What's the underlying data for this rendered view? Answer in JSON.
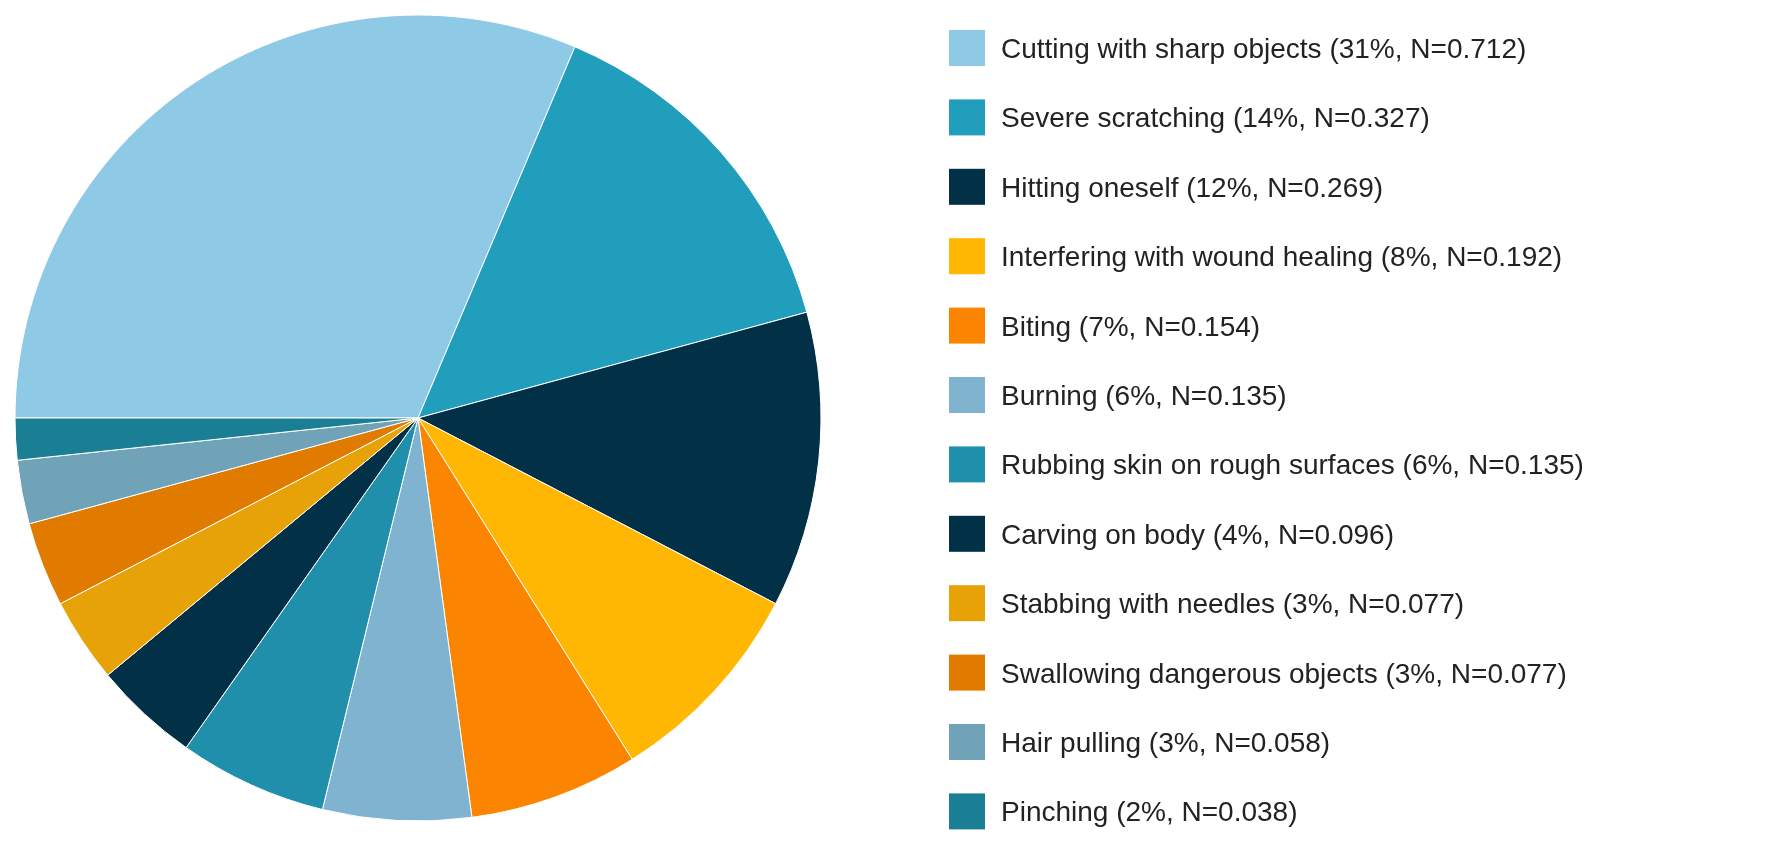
{
  "chart_data": {
    "type": "pie",
    "legend": "right",
    "categories": [
      "Cutting with sharp objects (31%, N=0.712)",
      "Severe scratching (14%, N=0.327)",
      "Hitting oneself (12%, N=0.269)",
      "Interfering with wound healing (8%, N=0.192)",
      "Biting (7%, N=0.154)",
      "Burning (6%, N=0.135)",
      "Rubbing skin on rough surfaces (6%, N=0.135)",
      "Carving on body (4%, N=0.096)",
      "Stabbing with needles (3%, N=0.077)",
      "Swallowing dangerous objects (3%, N=0.077)",
      "Hair pulling (3%, N=0.058)",
      "Pinching (2%, N=0.038)"
    ],
    "values": [
      0.712,
      0.327,
      0.269,
      0.192,
      0.154,
      0.135,
      0.135,
      0.096,
      0.077,
      0.077,
      0.058,
      0.038
    ],
    "colors": [
      "#8ecae6",
      "#219ebc",
      "#023047",
      "#ffb703",
      "#fb8500",
      "#7fb3d0",
      "#1f8fab",
      "#023047",
      "#e6a206",
      "#e07b00",
      "#70a2b8",
      "#1a7f94"
    ]
  }
}
